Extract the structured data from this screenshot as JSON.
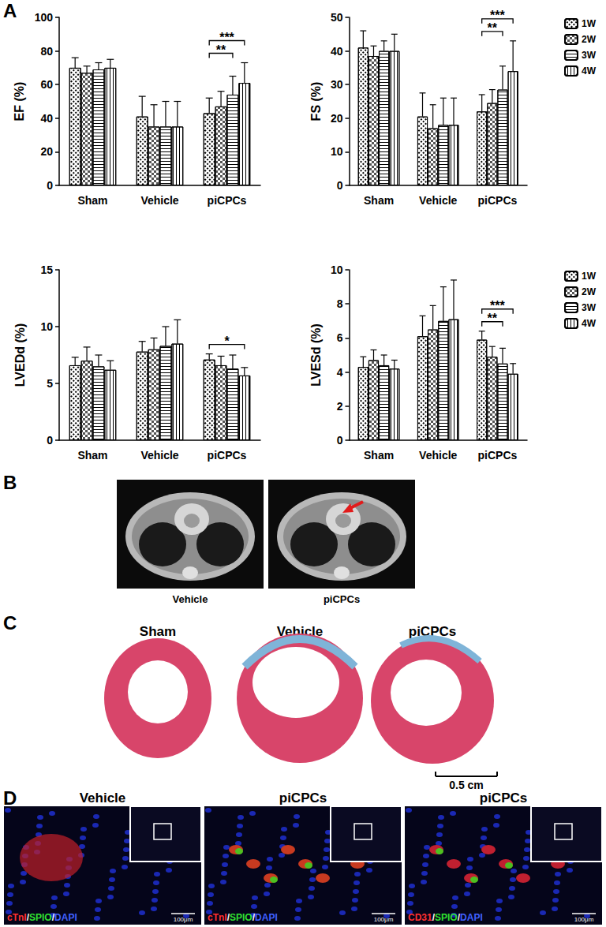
{
  "chart_data": [
    {
      "type": "bar",
      "y_label": "EF (%)",
      "categories": [
        "Sham",
        "Vehicle",
        "piCPCs"
      ],
      "series": [
        {
          "name": "1W",
          "color": "#ffffff",
          "values": [
            70,
            41,
            43
          ],
          "errors": [
            6,
            12,
            9
          ]
        },
        {
          "name": "2W",
          "color": "#ffffff",
          "values": [
            67,
            35,
            47
          ],
          "errors": [
            4,
            13,
            9
          ]
        },
        {
          "name": "3W",
          "color": "#ffffff",
          "values": [
            69,
            35,
            54
          ],
          "errors": [
            4,
            15,
            11
          ]
        },
        {
          "name": "4W",
          "color": "#ffffff",
          "values": [
            70,
            35,
            61
          ],
          "errors": [
            5,
            15,
            12
          ]
        }
      ],
      "ylim": [
        0,
        100
      ],
      "yticks": [
        0,
        20,
        40,
        60,
        80,
        100
      ],
      "grid": false,
      "annotations": [
        {
          "category": "piCPCs",
          "from": "1W",
          "to": "3W",
          "label": "**"
        },
        {
          "category": "piCPCs",
          "from": "1W",
          "to": "4W",
          "label": "***"
        }
      ]
    },
    {
      "type": "bar",
      "y_label": "FS (%)",
      "categories": [
        "Sham",
        "Vehicle",
        "piCPCs"
      ],
      "series": [
        {
          "name": "1W",
          "color": "#ffffff",
          "values": [
            41,
            20.5,
            22
          ],
          "errors": [
            5,
            7,
            5
          ]
        },
        {
          "name": "2W",
          "color": "#ffffff",
          "values": [
            38.5,
            17,
            24.5
          ],
          "errors": [
            3,
            7,
            4
          ]
        },
        {
          "name": "3W",
          "color": "#ffffff",
          "values": [
            40,
            18,
            28.5
          ],
          "errors": [
            3,
            8,
            7
          ]
        },
        {
          "name": "4W",
          "color": "#ffffff",
          "values": [
            40,
            18,
            34
          ],
          "errors": [
            5,
            8,
            9
          ]
        }
      ],
      "ylim": [
        0,
        50
      ],
      "yticks": [
        0,
        10,
        20,
        30,
        40,
        50
      ],
      "grid": false,
      "legend": "top-right",
      "annotations": [
        {
          "category": "piCPCs",
          "from": "1W",
          "to": "3W",
          "label": "**"
        },
        {
          "category": "piCPCs",
          "from": "1W",
          "to": "4W",
          "label": "***"
        }
      ]
    },
    {
      "type": "bar",
      "y_label": "LVEDd (%)",
      "categories": [
        "Sham",
        "Vehicle",
        "piCPCs"
      ],
      "series": [
        {
          "name": "1W",
          "color": "#ffffff",
          "values": [
            6.6,
            7.8,
            7.1
          ],
          "errors": [
            0.7,
            0.9,
            0.5
          ]
        },
        {
          "name": "2W",
          "color": "#ffffff",
          "values": [
            7.0,
            8.0,
            6.6
          ],
          "errors": [
            1.2,
            1.0,
            0.8
          ]
        },
        {
          "name": "3W",
          "color": "#ffffff",
          "values": [
            6.5,
            8.3,
            6.3
          ],
          "errors": [
            1.0,
            1.7,
            1.2
          ]
        },
        {
          "name": "4W",
          "color": "#ffffff",
          "values": [
            6.2,
            8.5,
            5.7
          ],
          "errors": [
            0.8,
            2.1,
            0.7
          ]
        }
      ],
      "ylim": [
        0,
        15
      ],
      "yticks": [
        0,
        5,
        10,
        15
      ],
      "grid": false,
      "annotations": [
        {
          "category": "piCPCs",
          "from": "1W",
          "to": "4W",
          "label": "*"
        }
      ]
    },
    {
      "type": "bar",
      "y_label": "LVESd (%)",
      "categories": [
        "Sham",
        "Vehicle",
        "piCPCs"
      ],
      "series": [
        {
          "name": "1W",
          "color": "#ffffff",
          "values": [
            4.3,
            6.1,
            5.9
          ],
          "errors": [
            0.6,
            1.2,
            0.5
          ]
        },
        {
          "name": "2W",
          "color": "#ffffff",
          "values": [
            4.7,
            6.5,
            4.9
          ],
          "errors": [
            0.6,
            1.4,
            0.6
          ]
        },
        {
          "name": "3W",
          "color": "#ffffff",
          "values": [
            4.4,
            7.0,
            4.5
          ],
          "errors": [
            0.6,
            2.0,
            0.9
          ]
        },
        {
          "name": "4W",
          "color": "#ffffff",
          "values": [
            4.2,
            7.1,
            3.9
          ],
          "errors": [
            0.5,
            2.3,
            0.6
          ]
        }
      ],
      "ylim": [
        0,
        10
      ],
      "yticks": [
        0,
        2,
        4,
        6,
        8,
        10
      ],
      "grid": false,
      "legend": "top-right",
      "annotations": [
        {
          "category": "piCPCs",
          "from": "1W",
          "to": "3W",
          "label": "**"
        },
        {
          "category": "piCPCs",
          "from": "1W",
          "to": "4W",
          "label": "***"
        }
      ]
    }
  ],
  "panel_labels": [
    "A",
    "B",
    "C",
    "D"
  ],
  "panel_b": {
    "captions": [
      "Vehicle",
      "piCPCs"
    ]
  },
  "panel_c": {
    "titles": [
      "Sham",
      "Vehicle",
      "piCPCs"
    ],
    "scale_bar": "0.5 cm"
  },
  "panel_d": {
    "scale_bar": "100μm",
    "panels": [
      {
        "title": "Vehicle",
        "stain": [
          {
            "text": "cTnI",
            "color": "#ff3030"
          },
          {
            "text": "/",
            "color": "#ffffff"
          },
          {
            "text": "SPIO",
            "color": "#30e030"
          },
          {
            "text": "/",
            "color": "#ffffff"
          },
          {
            "text": "DAPI",
            "color": "#4060ff"
          }
        ]
      },
      {
        "title": "piCPCs",
        "stain": [
          {
            "text": "cTnI",
            "color": "#ff3030"
          },
          {
            "text": "/",
            "color": "#ffffff"
          },
          {
            "text": "SPIO",
            "color": "#30e030"
          },
          {
            "text": "/",
            "color": "#ffffff"
          },
          {
            "text": "DAPI",
            "color": "#4060ff"
          }
        ]
      },
      {
        "title": "piCPCs",
        "stain": [
          {
            "text": "CD31",
            "color": "#ff3030"
          },
          {
            "text": "/",
            "color": "#ffffff"
          },
          {
            "text": "SPIO",
            "color": "#30e030"
          },
          {
            "text": "/",
            "color": "#ffffff"
          },
          {
            "text": "DAPI",
            "color": "#4060ff"
          }
        ]
      }
    ]
  }
}
